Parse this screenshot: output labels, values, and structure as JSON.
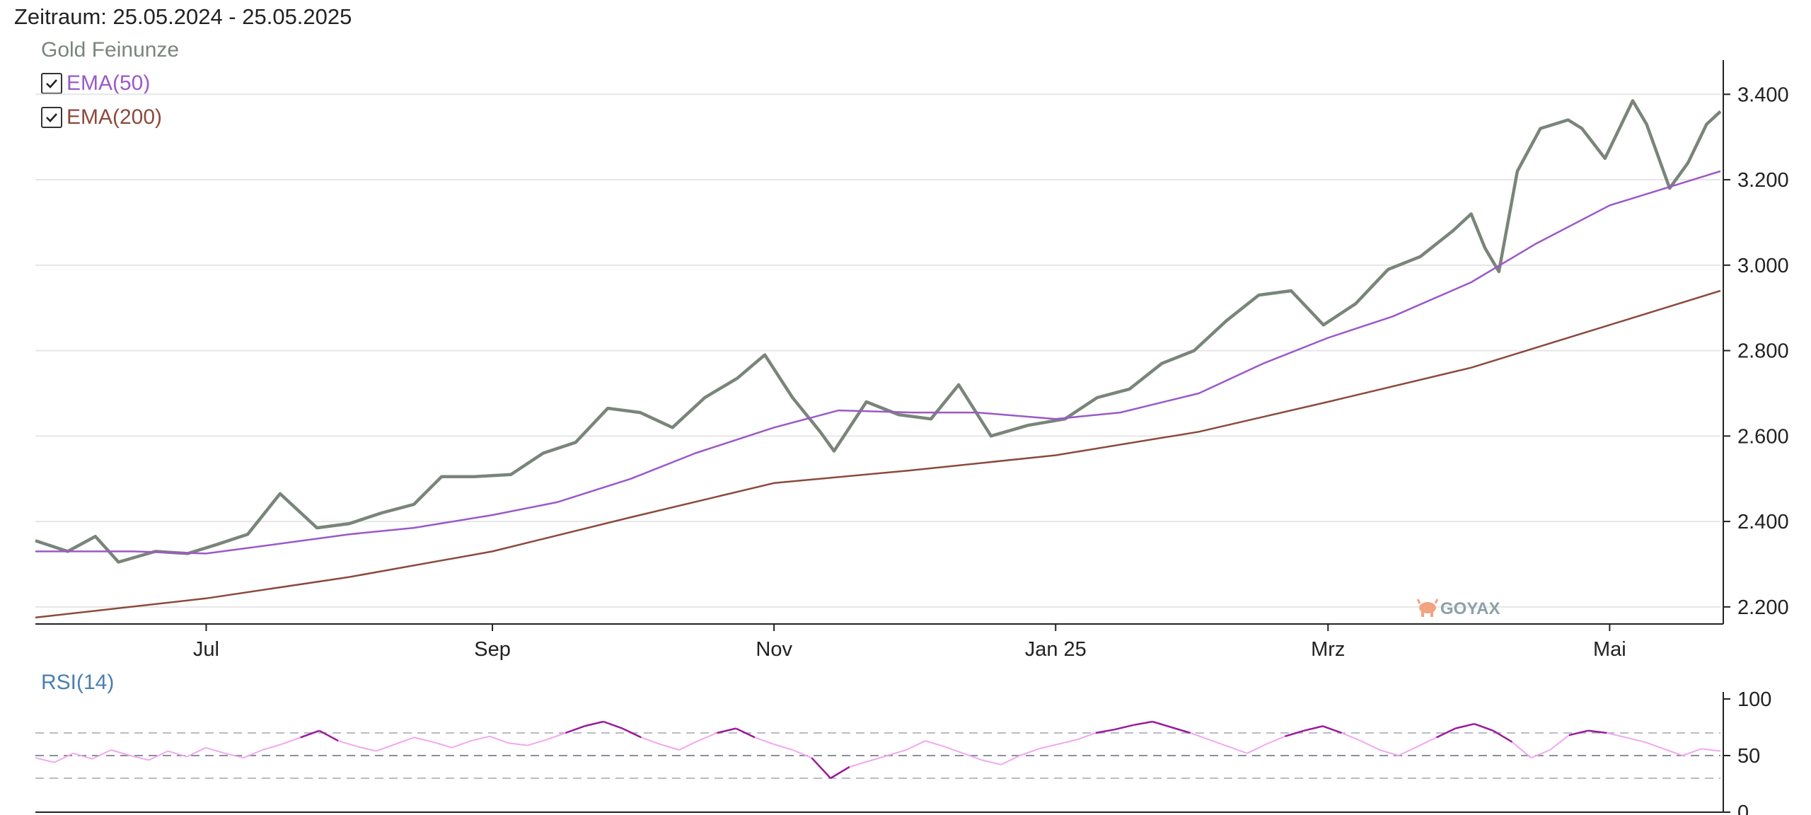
{
  "header": {
    "zeitraum": "Zeitraum: 25.05.2024 - 25.05.2025"
  },
  "legend": {
    "series_label": "Gold Feinunze",
    "toggles": [
      {
        "label": "EMA(50)",
        "checked": true,
        "color": "#9b59c8"
      },
      {
        "label": "EMA(200)",
        "checked": true,
        "color": "#8b4a3c"
      }
    ]
  },
  "watermark": "GOYAX",
  "colors": {
    "price": "#7a857a",
    "ema50": "#9b59c8",
    "ema200": "#8b4a3c",
    "rsi": "#f0a8f0",
    "rsi_extreme": "#9a1a9a",
    "grid": "#e6e6e6"
  },
  "chart_data": {
    "type": "line",
    "x_ticks": [
      {
        "label": "Jul",
        "date": "2024-07-01"
      },
      {
        "label": "Sep",
        "date": "2024-09-01"
      },
      {
        "label": "Nov",
        "date": "2024-11-01"
      },
      {
        "label": "Jan 25",
        "date": "2025-01-01"
      },
      {
        "label": "Mrz",
        "date": "2025-03-01"
      },
      {
        "label": "Mai",
        "date": "2025-05-01"
      }
    ],
    "y_ticks": [
      "2.200",
      "2.400",
      "2.600",
      "2.800",
      "3.000",
      "3.200",
      "3.400"
    ],
    "ylim": [
      2160,
      3480
    ],
    "xlim": [
      "2024-05-25",
      "2025-05-25"
    ],
    "series": [
      {
        "name": "Gold Feinunze",
        "points": [
          [
            "2024-05-25",
            2355
          ],
          [
            "2024-06-01",
            2330
          ],
          [
            "2024-06-07",
            2365
          ],
          [
            "2024-06-12",
            2305
          ],
          [
            "2024-06-20",
            2330
          ],
          [
            "2024-06-27",
            2325
          ],
          [
            "2024-07-03",
            2345
          ],
          [
            "2024-07-10",
            2370
          ],
          [
            "2024-07-17",
            2465
          ],
          [
            "2024-07-25",
            2385
          ],
          [
            "2024-08-01",
            2395
          ],
          [
            "2024-08-08",
            2420
          ],
          [
            "2024-08-15",
            2440
          ],
          [
            "2024-08-21",
            2505
          ],
          [
            "2024-08-28",
            2505
          ],
          [
            "2024-09-05",
            2510
          ],
          [
            "2024-09-12",
            2560
          ],
          [
            "2024-09-19",
            2585
          ],
          [
            "2024-09-26",
            2665
          ],
          [
            "2024-10-03",
            2655
          ],
          [
            "2024-10-10",
            2620
          ],
          [
            "2024-10-17",
            2690
          ],
          [
            "2024-10-24",
            2735
          ],
          [
            "2024-10-30",
            2790
          ],
          [
            "2024-11-05",
            2690
          ],
          [
            "2024-11-11",
            2610
          ],
          [
            "2024-11-14",
            2565
          ],
          [
            "2024-11-21",
            2680
          ],
          [
            "2024-11-28",
            2650
          ],
          [
            "2024-12-05",
            2640
          ],
          [
            "2024-12-11",
            2720
          ],
          [
            "2024-12-18",
            2600
          ],
          [
            "2024-12-26",
            2625
          ],
          [
            "2025-01-03",
            2640
          ],
          [
            "2025-01-10",
            2690
          ],
          [
            "2025-01-17",
            2710
          ],
          [
            "2025-01-24",
            2770
          ],
          [
            "2025-01-31",
            2800
          ],
          [
            "2025-02-07",
            2870
          ],
          [
            "2025-02-14",
            2930
          ],
          [
            "2025-02-21",
            2940
          ],
          [
            "2025-02-28",
            2860
          ],
          [
            "2025-03-07",
            2910
          ],
          [
            "2025-03-14",
            2990
          ],
          [
            "2025-03-21",
            3020
          ],
          [
            "2025-03-28",
            3080
          ],
          [
            "2025-04-01",
            3120
          ],
          [
            "2025-04-04",
            3040
          ],
          [
            "2025-04-07",
            2985
          ],
          [
            "2025-04-11",
            3220
          ],
          [
            "2025-04-16",
            3320
          ],
          [
            "2025-04-22",
            3340
          ],
          [
            "2025-04-25",
            3320
          ],
          [
            "2025-04-30",
            3250
          ],
          [
            "2025-05-06",
            3385
          ],
          [
            "2025-05-09",
            3330
          ],
          [
            "2025-05-14",
            3180
          ],
          [
            "2025-05-18",
            3240
          ],
          [
            "2025-05-22",
            3330
          ],
          [
            "2025-05-25",
            3360
          ]
        ]
      },
      {
        "name": "EMA(50)",
        "points": [
          [
            "2024-05-25",
            2330
          ],
          [
            "2024-06-15",
            2330
          ],
          [
            "2024-07-01",
            2325
          ],
          [
            "2024-07-15",
            2345
          ],
          [
            "2024-08-01",
            2370
          ],
          [
            "2024-08-15",
            2385
          ],
          [
            "2024-09-01",
            2415
          ],
          [
            "2024-09-15",
            2445
          ],
          [
            "2024-10-01",
            2500
          ],
          [
            "2024-10-15",
            2560
          ],
          [
            "2024-11-01",
            2620
          ],
          [
            "2024-11-15",
            2660
          ],
          [
            "2024-12-01",
            2655
          ],
          [
            "2024-12-15",
            2655
          ],
          [
            "2025-01-01",
            2640
          ],
          [
            "2025-01-15",
            2655
          ],
          [
            "2025-02-01",
            2700
          ],
          [
            "2025-02-15",
            2770
          ],
          [
            "2025-03-01",
            2830
          ],
          [
            "2025-03-15",
            2880
          ],
          [
            "2025-04-01",
            2960
          ],
          [
            "2025-04-15",
            3050
          ],
          [
            "2025-05-01",
            3140
          ],
          [
            "2025-05-25",
            3220
          ]
        ]
      },
      {
        "name": "EMA(200)",
        "points": [
          [
            "2024-05-25",
            2175
          ],
          [
            "2024-07-01",
            2220
          ],
          [
            "2024-08-01",
            2270
          ],
          [
            "2024-09-01",
            2330
          ],
          [
            "2024-10-01",
            2410
          ],
          [
            "2024-11-01",
            2490
          ],
          [
            "2024-12-01",
            2520
          ],
          [
            "2025-01-01",
            2555
          ],
          [
            "2025-02-01",
            2610
          ],
          [
            "2025-03-01",
            2680
          ],
          [
            "2025-04-01",
            2760
          ],
          [
            "2025-05-01",
            2860
          ],
          [
            "2025-05-25",
            2940
          ]
        ]
      }
    ],
    "rsi": {
      "label": "RSI(14)",
      "y_ticks": [
        "100",
        "50",
        "0"
      ],
      "ylim": [
        0,
        100
      ],
      "reference_lines": [
        30,
        50,
        70
      ],
      "values": [
        48,
        44,
        52,
        47,
        55,
        50,
        46,
        54,
        49,
        57,
        52,
        48,
        55,
        60,
        66,
        72,
        63,
        58,
        54,
        60,
        66,
        62,
        57,
        63,
        67,
        61,
        59,
        64,
        70,
        76,
        80,
        74,
        66,
        60,
        55,
        63,
        70,
        74,
        66,
        60,
        55,
        48,
        30,
        40,
        45,
        50,
        55,
        63,
        58,
        52,
        46,
        42,
        50,
        56,
        60,
        64,
        70,
        73,
        77,
        80,
        75,
        70,
        64,
        58,
        52,
        60,
        67,
        72,
        76,
        70,
        63,
        55,
        50,
        58,
        66,
        74,
        78,
        72,
        62,
        48,
        55,
        68,
        72,
        70,
        66,
        62,
        56,
        50,
        56,
        54
      ]
    }
  }
}
